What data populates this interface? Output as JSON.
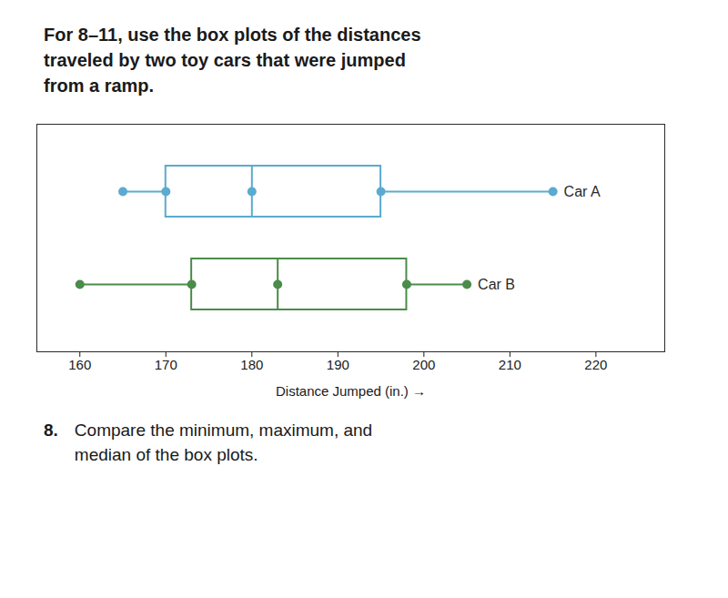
{
  "chart_data": {
    "type": "box",
    "title": "For 8–11, use the box plots of the distances\ntraveled by two toy cars that were jumped\nfrom a ramp.",
    "xlabel": "Distance Jumped (in.)",
    "xlim": [
      155,
      228
    ],
    "xticks": [
      160,
      170,
      180,
      190,
      200,
      210,
      220
    ],
    "series": [
      {
        "name": "Car A",
        "color": "#5aabcf",
        "min": 165,
        "q1": 170,
        "median": 180,
        "q3": 195,
        "max": 215
      },
      {
        "name": "Car B",
        "color": "#4a8c4a",
        "min": 160,
        "q1": 173,
        "median": 183,
        "q3": 198,
        "max": 205
      }
    ],
    "annotations": [
      "8.",
      "Compare the minimum, maximum, and\nmedian of the box plots."
    ]
  }
}
